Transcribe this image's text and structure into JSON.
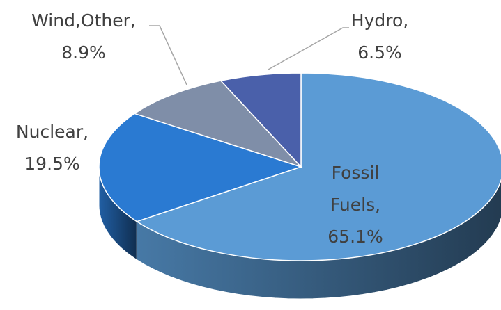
{
  "chart_data": {
    "type": "pie3d",
    "categories": [
      "Fossil Fuels",
      "Nuclear",
      "Wind,Other",
      "Hydro"
    ],
    "values": [
      65.1,
      19.5,
      8.9,
      6.5
    ],
    "value_labels": [
      "65.1%",
      "19.5%",
      "8.9%",
      "6.5%"
    ],
    "label_separator": ",",
    "colors": [
      "#5b9bd5",
      "#2a7ad2",
      "#7f8ea8",
      "#4a60aa"
    ]
  }
}
